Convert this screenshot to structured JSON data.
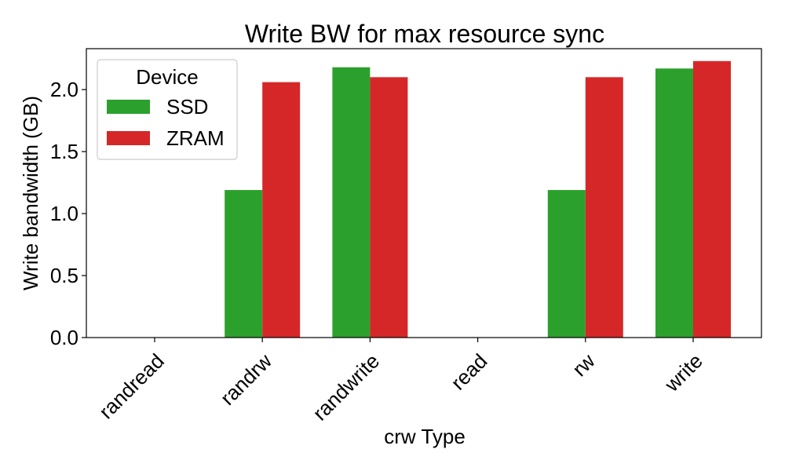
{
  "chart_data": {
    "type": "bar",
    "title": "Write BW for max resource sync",
    "xlabel": "crw Type",
    "ylabel": "Write bandwidth (GB)",
    "categories": [
      "randread",
      "randrw",
      "randwrite",
      "read",
      "rw",
      "write"
    ],
    "series": [
      {
        "name": "SSD",
        "values": [
          0,
          1.19,
          2.18,
          0,
          1.19,
          2.17
        ],
        "color": "#2ca02c"
      },
      {
        "name": "ZRAM",
        "values": [
          0,
          2.06,
          2.1,
          0,
          2.1,
          2.23
        ],
        "color": "#d62728"
      }
    ],
    "ylim": [
      0,
      2.33
    ],
    "yticks": [
      0.0,
      0.5,
      1.0,
      1.5,
      2.0
    ],
    "ytick_labels": [
      "0.0",
      "0.5",
      "1.0",
      "1.5",
      "2.0"
    ],
    "grid": false,
    "legend": {
      "title": "Device",
      "position": "top-left"
    }
  }
}
